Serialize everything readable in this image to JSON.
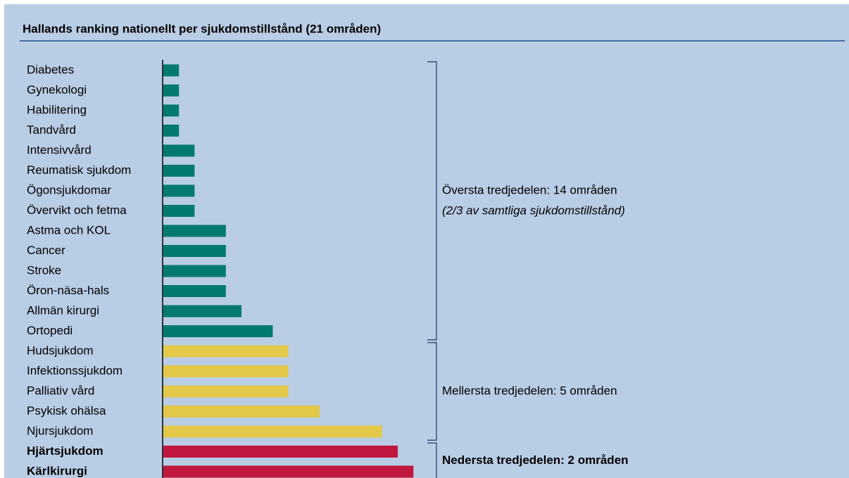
{
  "chart_data": {
    "type": "bar",
    "title": "Hallands ranking nationellt per sjukdomstillstånd (21 områden)",
    "groups": [
      {
        "label": "Översta tredjedelen: 14 områden",
        "note": "(2/3 av samtliga sjukdomstillstånd)",
        "color": "#007a6e",
        "bold": false,
        "categories": [
          "Diabetes",
          "Gynekologi",
          "Habilitering",
          "Tandvård",
          "Intensivvård",
          "Reumatisk sjukdom",
          "Ögonsjukdomar",
          "Övervikt och fetma",
          "Astma och KOL",
          "Cancer",
          "Stroke",
          "Öron-näsa-hals",
          "Allmän kirurgi",
          "Ortopedi"
        ],
        "values": [
          1,
          1,
          1,
          1,
          2,
          2,
          2,
          2,
          4,
          4,
          4,
          4,
          5,
          7
        ]
      },
      {
        "label": "Mellersta tredjedelen: 5 områden",
        "color": "#e3c84a",
        "bold": false,
        "categories": [
          "Hudsjukdom",
          "Infektionssjukdom",
          "Palliativ vård",
          "Psykisk ohälsa",
          "Njursjukdom"
        ],
        "values": [
          8,
          8,
          8,
          10,
          14
        ]
      },
      {
        "label": "Nedersta tredjedelen: 2 områden",
        "color": "#c0173f",
        "bold": true,
        "categories": [
          "Hjärtsjukdom",
          "Kärlkirurgi"
        ],
        "values": [
          15,
          16
        ]
      }
    ]
  }
}
